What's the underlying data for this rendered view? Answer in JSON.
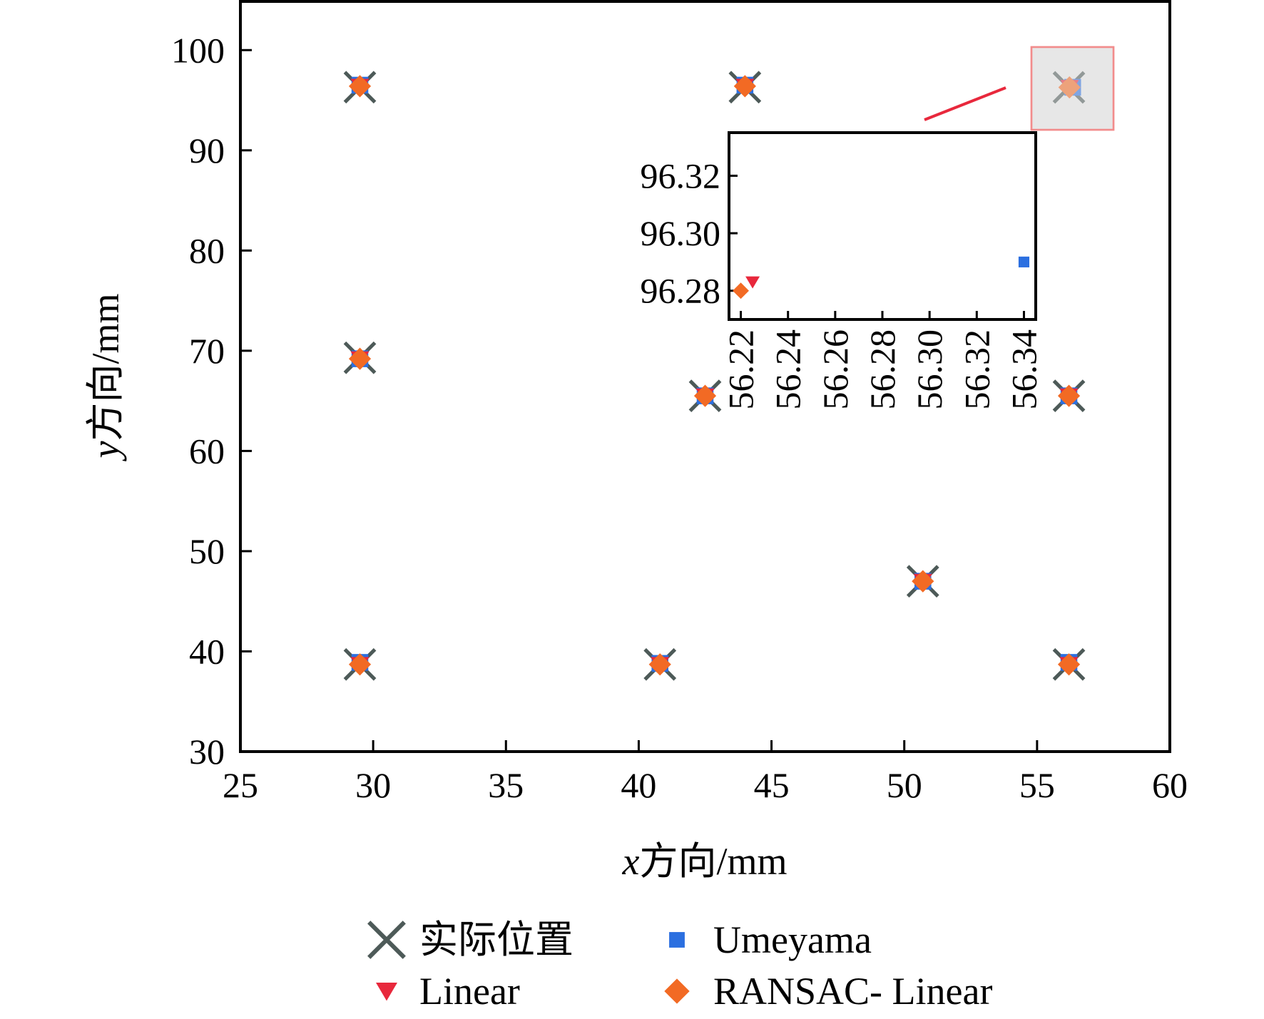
{
  "chart_data": {
    "type": "scatter",
    "title": "",
    "xlabel": {
      "var": "x",
      "rest": "方向/mm"
    },
    "ylabel": {
      "var": "y",
      "rest": "方向/mm"
    },
    "xlim": [
      25,
      60
    ],
    "ylim": [
      30,
      105
    ],
    "xticks": [
      "25",
      "30",
      "35",
      "40",
      "45",
      "50",
      "55",
      "60"
    ],
    "yticks": [
      "30",
      "40",
      "50",
      "60",
      "70",
      "80",
      "90",
      "100"
    ],
    "grid": false,
    "legend_position": "bottom",
    "series": [
      {
        "name": "实际位置",
        "marker": "x",
        "color": "#4d5a58",
        "x": [
          29.5,
          29.5,
          29.5,
          44.0,
          40.8,
          42.5,
          50.7,
          56.2,
          56.2,
          56.2
        ],
        "y": [
          96.3,
          69.3,
          38.7,
          96.3,
          38.7,
          65.5,
          47.0,
          96.28,
          65.5,
          38.7
        ]
      },
      {
        "name": "Umeyama",
        "marker": "square",
        "color": "#2b6fe0",
        "x": [
          29.5,
          29.5,
          29.5,
          44.0,
          40.8,
          42.5,
          50.7,
          56.34,
          56.2,
          56.2
        ],
        "y": [
          96.5,
          69.2,
          38.9,
          96.5,
          38.8,
          65.5,
          47.0,
          96.29,
          65.5,
          38.9
        ]
      },
      {
        "name": "Linear",
        "marker": "triangle-down",
        "color": "#e8283c",
        "x": [
          29.5,
          29.5,
          29.5,
          44.0,
          40.8,
          42.5,
          50.7,
          56.225,
          56.2,
          56.2
        ],
        "y": [
          96.4,
          69.2,
          38.7,
          96.4,
          38.7,
          65.5,
          47.0,
          96.283,
          65.5,
          38.7
        ]
      },
      {
        "name": "RANSAC- Linear",
        "marker": "diamond",
        "color": "#f26a24",
        "x": [
          29.5,
          29.5,
          29.5,
          44.0,
          40.8,
          42.5,
          50.7,
          56.22,
          56.2,
          56.2
        ],
        "y": [
          96.4,
          69.2,
          38.7,
          96.4,
          38.7,
          65.5,
          47.0,
          96.28,
          65.5,
          38.7
        ]
      }
    ],
    "inset": {
      "xlim": [
        56.215,
        56.345
      ],
      "ylim": [
        96.27,
        96.335
      ],
      "xticks": [
        "56.22",
        "56.24",
        "56.26",
        "56.28",
        "56.30",
        "56.32",
        "56.34"
      ],
      "yticks": [
        "96.28",
        "96.30",
        "96.32"
      ],
      "highlight_color": "#f28c8c",
      "connector_color": "#e8283c"
    }
  }
}
